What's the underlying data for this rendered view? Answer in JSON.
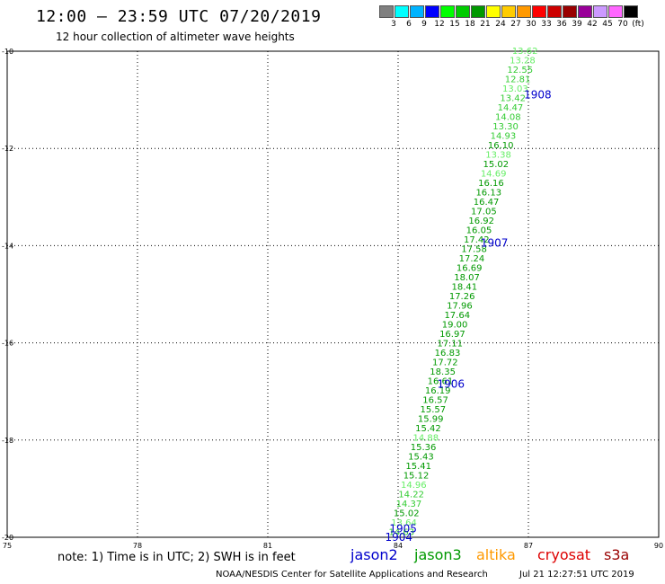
{
  "header": {
    "title": "12:00 — 23:59 UTC 07/20/2019",
    "subtitle": "12 hour collection of altimeter wave heights"
  },
  "colorbar": {
    "colors": [
      "#808080",
      "#00ffff",
      "#00b3ff",
      "#0000ff",
      "#00ff00",
      "#00cc00",
      "#009900",
      "#ffff00",
      "#ffcc00",
      "#ff9900",
      "#ff0000",
      "#cc0000",
      "#990000",
      "#990099",
      "#cc99ff",
      "#ff66ff",
      "#000000"
    ],
    "labels": [
      "3",
      "6",
      "9",
      "12",
      "15",
      "18",
      "21",
      "24",
      "27",
      "30",
      "33",
      "36",
      "39",
      "42",
      "45",
      "70",
      "(ft)"
    ]
  },
  "chart_data": {
    "type": "scatter",
    "xlim": [
      75,
      90
    ],
    "ylim": [
      -20,
      -10
    ],
    "x_ticks": [
      "75",
      "78",
      "81",
      "84",
      "87",
      "90"
    ],
    "y_ticks": [
      "-10",
      "-12",
      "-14",
      "-16",
      "-18",
      "-20"
    ],
    "grid": true,
    "swh_labels": [
      "13.62",
      "13.28",
      "12.55",
      "12.81",
      "13.03",
      "13.42",
      "14.47",
      "14.08",
      "13.30",
      "14.93",
      "16.10",
      "13.38",
      "15.02",
      "14.69",
      "16.16",
      "16.13",
      "16.47",
      "17.05",
      "16.92",
      "16.05",
      "17.42",
      "17.58",
      "17.24",
      "16.69",
      "18.07",
      "18.41",
      "17.26",
      "17.96",
      "17.64",
      "19.00",
      "16.97",
      "17.11",
      "16.83",
      "17.72",
      "18.35",
      "16.61",
      "16.19",
      "16.57",
      "15.57",
      "15.99",
      "15.42",
      "14.88",
      "15.36",
      "15.43",
      "15.41",
      "15.12",
      "14.96",
      "14.22",
      "14.37",
      "15.02",
      "13.64",
      "14.63"
    ],
    "swh_colors": [
      "#66ee66",
      "#66ee66",
      "#33cc33",
      "#33cc33",
      "#66ee66",
      "#33cc33",
      "#33cc33",
      "#33cc33",
      "#33cc33",
      "#33cc33",
      "#009900",
      "#66ee66",
      "#009900",
      "#66ee66",
      "#009900",
      "#009900",
      "#009900",
      "#009900",
      "#009900",
      "#009900",
      "#009900",
      "#009900",
      "#009900",
      "#009900",
      "#009900",
      "#009900",
      "#009900",
      "#009900",
      "#009900",
      "#009900",
      "#009900",
      "#009900",
      "#009900",
      "#009900",
      "#009900",
      "#009900",
      "#009900",
      "#009900",
      "#009900",
      "#009900",
      "#009900",
      "#66ee66",
      "#009900",
      "#009900",
      "#009900",
      "#009900",
      "#66ee66",
      "#33cc33",
      "#33cc33",
      "#009900",
      "#66ee66",
      "#33cc33"
    ],
    "time_labels": [
      {
        "text": "1908",
        "lon": 86.9,
        "lat": -10.9
      },
      {
        "text": "1907",
        "lon": 85.9,
        "lat": -13.95
      },
      {
        "text": "1906",
        "lon": 84.9,
        "lat": -16.85
      },
      {
        "text": "1905",
        "lon": 83.8,
        "lat": -19.82
      },
      {
        "text": "1904",
        "lon": 83.7,
        "lat": -20.0
      }
    ]
  },
  "note": "note: 1) Time is in UTC; 2) SWH is in feet",
  "satellites": [
    {
      "name": "jason2",
      "color": "#0000cc"
    },
    {
      "name": "jason3",
      "color": "#009900"
    },
    {
      "name": "altika",
      "color": "#ff9900"
    },
    {
      "name": "cryosat",
      "color": "#dd0000"
    },
    {
      "name": "s3a",
      "color": "#990000"
    }
  ],
  "footer": {
    "agency": "NOAA/NESDIS Center for Satellite Applications and Research",
    "timestamp": "Jul 21 12:27:51 UTC 2019"
  }
}
